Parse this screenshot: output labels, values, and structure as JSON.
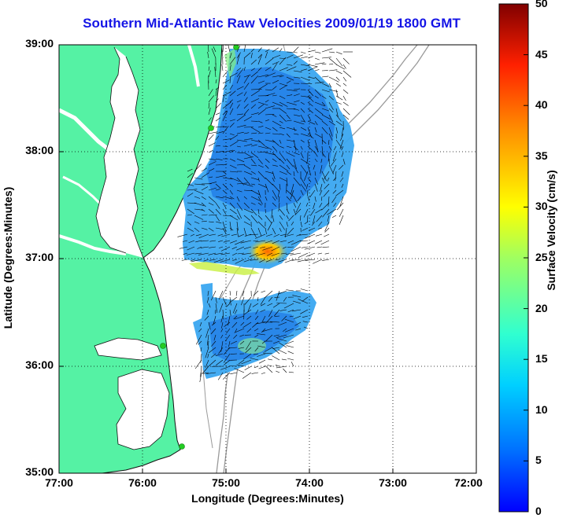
{
  "title": "Southern Mid-Atlantic Raw Velocities 2009/01/19 1800 GMT",
  "axes": {
    "xlabel": "Longitude (Degrees:Minutes)",
    "ylabel": "Latitude (Degrees:Minutes)",
    "xticks": [
      "77:00",
      "76:00",
      "75:00",
      "74:00",
      "73:00",
      "72:00"
    ],
    "yticks": [
      "39:00",
      "38:00",
      "37:00",
      "36:00",
      "35:00"
    ],
    "grid": "dotted"
  },
  "colorbar": {
    "label": "Surface Velocity (cm/s)",
    "ticks": [
      "50",
      "45",
      "40",
      "35",
      "30",
      "25",
      "20",
      "15",
      "10",
      "5",
      "0"
    ],
    "range": [
      0,
      50
    ],
    "colormap": "jet"
  },
  "colors": {
    "land": "#55f2a4",
    "title": "#1414e6",
    "ocean": "#ffffff",
    "bathymetry": "#9a9a9a",
    "station": "#22cc22"
  }
}
